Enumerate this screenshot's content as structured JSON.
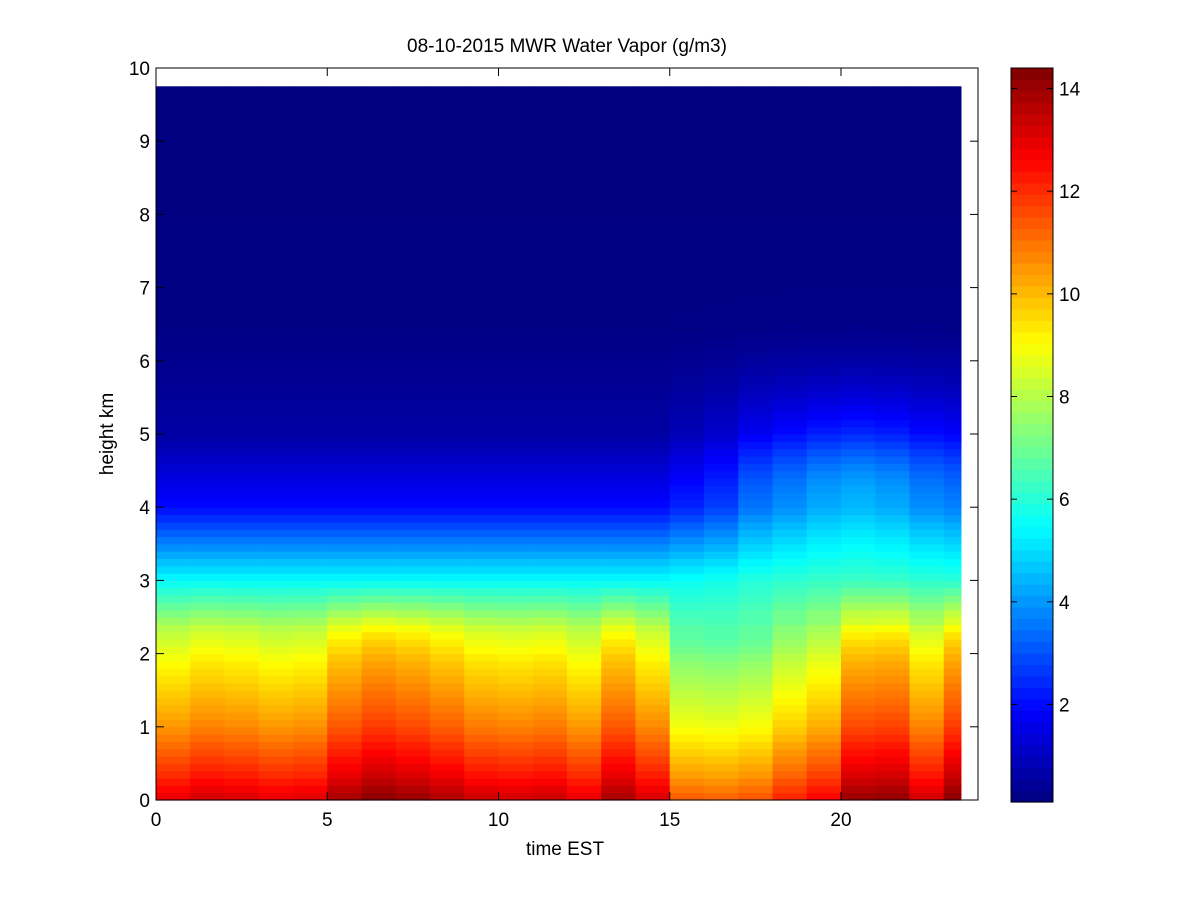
{
  "chart_data": {
    "type": "heatmap",
    "title": "08-10-2015 MWR Water Vapor (g/m3)",
    "xlabel": "time EST",
    "ylabel": "height km",
    "xlim": [
      0,
      24
    ],
    "ylim": [
      0,
      10
    ],
    "x_ticks": [
      0,
      5,
      10,
      15,
      20
    ],
    "y_ticks": [
      0,
      1,
      2,
      3,
      4,
      5,
      6,
      7,
      8,
      9,
      10
    ],
    "colorbar": {
      "colormap": "jet",
      "clim": [
        0.1,
        14.4
      ],
      "ticks": [
        2,
        4,
        6,
        8,
        10,
        12,
        14
      ]
    },
    "time_columns": [
      0.0,
      1.0,
      2.0,
      3.0,
      4.0,
      5.0,
      6.0,
      7.0,
      8.0,
      9.0,
      10.0,
      11.0,
      12.0,
      13.0,
      14.0,
      15.0,
      16.0,
      17.0,
      18.0,
      19.0,
      20.0,
      21.0,
      22.0,
      23.0,
      23.5
    ],
    "heights_km": [
      0,
      0.35,
      1.0,
      1.9,
      2.35,
      3.0,
      4.0,
      5.0,
      6.5,
      9.75
    ],
    "profiles": {
      "base": [
        13.0,
        12.0,
        10.5,
        9.0,
        8.0,
        5.5,
        2.0,
        0.6,
        0.15,
        0.1
      ],
      "col_adjust": [
        0.0,
        0.3,
        0.2,
        0.0,
        0.1,
        0.9,
        1.3,
        1.1,
        0.8,
        0.4,
        0.3,
        0.4,
        0.0,
        0.9,
        0.2,
        -1.6,
        -1.7,
        -1.5,
        -0.8,
        -0.3,
        1.1,
        1.2,
        0.3,
        1.3,
        1.3
      ],
      "upper_moisture": [
        0.0,
        0.0,
        0.0,
        0.0,
        0.0,
        0.0,
        0.0,
        0.0,
        0.0,
        0.0,
        0.0,
        0.0,
        0.0,
        0.0,
        0.0,
        0.2,
        0.4,
        0.8,
        1.0,
        1.2,
        1.3,
        1.2,
        1.0,
        0.9,
        0.9
      ]
    }
  }
}
